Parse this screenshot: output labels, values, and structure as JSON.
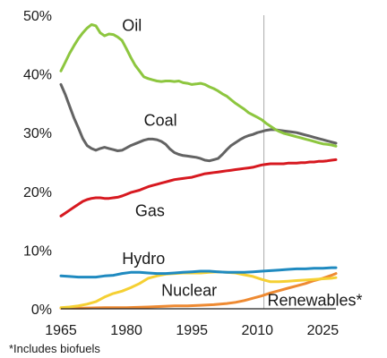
{
  "chart_data": {
    "type": "line",
    "title": "",
    "xlabel": "",
    "ylabel": "",
    "xlim": [
      1965,
      2028
    ],
    "ylim": [
      0,
      50
    ],
    "x_ticks": [
      1965,
      1980,
      1995,
      2010,
      2025
    ],
    "x_tick_labels": [
      "1965",
      "1980",
      "1995",
      "2010",
      "2025"
    ],
    "y_ticks": [
      0,
      10,
      20,
      30,
      40,
      50
    ],
    "y_tick_labels": [
      "0%",
      "10%",
      "20%",
      "30%",
      "40%",
      "50%"
    ],
    "grid": false,
    "legend": "none (series labelled directly on the chart)",
    "forecast_divider_x": 2011.5,
    "footnote": "*Includes biofuels",
    "series": [
      {
        "name": "Oil",
        "color": "#8dc63f",
        "points": [
          [
            1965,
            40.5
          ],
          [
            1966,
            42
          ],
          [
            1967,
            43.5
          ],
          [
            1968,
            44.8
          ],
          [
            1969,
            46
          ],
          [
            1970,
            47
          ],
          [
            1971,
            47.8
          ],
          [
            1972,
            48.4
          ],
          [
            1973,
            48.2
          ],
          [
            1974,
            47
          ],
          [
            1975,
            46.5
          ],
          [
            1976,
            46.8
          ],
          [
            1977,
            46.7
          ],
          [
            1978,
            46.3
          ],
          [
            1979,
            45.7
          ],
          [
            1980,
            44.3
          ],
          [
            1981,
            42.8
          ],
          [
            1982,
            41.5
          ],
          [
            1983,
            40.5
          ],
          [
            1984,
            39.5
          ],
          [
            1985,
            39.2
          ],
          [
            1986,
            39
          ],
          [
            1987,
            38.8
          ],
          [
            1988,
            38.7
          ],
          [
            1989,
            38.8
          ],
          [
            1990,
            38.8
          ],
          [
            1991,
            38.7
          ],
          [
            1992,
            38.8
          ],
          [
            1993,
            38.5
          ],
          [
            1994,
            38.4
          ],
          [
            1995,
            38.2
          ],
          [
            1996,
            38.3
          ],
          [
            1997,
            38.4
          ],
          [
            1998,
            38.2
          ],
          [
            1999,
            37.8
          ],
          [
            2000,
            37.5
          ],
          [
            2001,
            37.1
          ],
          [
            2002,
            36.6
          ],
          [
            2003,
            36.2
          ],
          [
            2004,
            35.6
          ],
          [
            2005,
            35
          ],
          [
            2006,
            34.5
          ],
          [
            2007,
            34
          ],
          [
            2008,
            33.4
          ],
          [
            2009,
            33
          ],
          [
            2010,
            32.6
          ],
          [
            2011,
            32.2
          ],
          [
            2012,
            31.6
          ],
          [
            2013,
            31.1
          ],
          [
            2014,
            30.6
          ],
          [
            2015,
            30.2
          ],
          [
            2016,
            29.9
          ],
          [
            2017,
            29.7
          ],
          [
            2018,
            29.5
          ],
          [
            2019,
            29.3
          ],
          [
            2020,
            29.1
          ],
          [
            2021,
            28.9
          ],
          [
            2022,
            28.7
          ],
          [
            2023,
            28.5
          ],
          [
            2024,
            28.3
          ],
          [
            2025,
            28.1
          ],
          [
            2026,
            28
          ],
          [
            2027,
            27.9
          ],
          [
            2028,
            27.7
          ]
        ]
      },
      {
        "name": "Coal",
        "color": "#636363",
        "points": [
          [
            1965,
            38.2
          ],
          [
            1966,
            36.5
          ],
          [
            1967,
            34.5
          ],
          [
            1968,
            32.5
          ],
          [
            1969,
            30.8
          ],
          [
            1970,
            29
          ],
          [
            1971,
            27.8
          ],
          [
            1972,
            27.3
          ],
          [
            1973,
            27
          ],
          [
            1974,
            27.3
          ],
          [
            1975,
            27.5
          ],
          [
            1976,
            27.3
          ],
          [
            1977,
            27.1
          ],
          [
            1978,
            26.9
          ],
          [
            1979,
            27
          ],
          [
            1980,
            27.4
          ],
          [
            1981,
            27.8
          ],
          [
            1982,
            28.1
          ],
          [
            1983,
            28.4
          ],
          [
            1984,
            28.7
          ],
          [
            1985,
            28.9
          ],
          [
            1986,
            28.9
          ],
          [
            1987,
            28.8
          ],
          [
            1988,
            28.5
          ],
          [
            1989,
            28
          ],
          [
            1990,
            27.2
          ],
          [
            1991,
            26.6
          ],
          [
            1992,
            26.3
          ],
          [
            1993,
            26.1
          ],
          [
            1994,
            26
          ],
          [
            1995,
            25.9
          ],
          [
            1996,
            25.8
          ],
          [
            1997,
            25.6
          ],
          [
            1998,
            25.3
          ],
          [
            1999,
            25.2
          ],
          [
            2000,
            25.4
          ],
          [
            2001,
            25.6
          ],
          [
            2002,
            26.3
          ],
          [
            2003,
            27.1
          ],
          [
            2004,
            27.8
          ],
          [
            2005,
            28.3
          ],
          [
            2006,
            28.8
          ],
          [
            2007,
            29.2
          ],
          [
            2008,
            29.5
          ],
          [
            2009,
            29.7
          ],
          [
            2010,
            30
          ],
          [
            2011,
            30.2
          ],
          [
            2012,
            30.4
          ],
          [
            2013,
            30.5
          ],
          [
            2014,
            30.5
          ],
          [
            2015,
            30.4
          ],
          [
            2016,
            30.3
          ],
          [
            2017,
            30.2
          ],
          [
            2018,
            30.1
          ],
          [
            2019,
            30
          ],
          [
            2020,
            29.8
          ],
          [
            2021,
            29.6
          ],
          [
            2022,
            29.4
          ],
          [
            2023,
            29.2
          ],
          [
            2024,
            29
          ],
          [
            2025,
            28.8
          ],
          [
            2026,
            28.6
          ],
          [
            2027,
            28.4
          ],
          [
            2028,
            28.2
          ]
        ]
      },
      {
        "name": "Gas",
        "color": "#d71920",
        "points": [
          [
            1965,
            15.8
          ],
          [
            1966,
            16.3
          ],
          [
            1967,
            16.8
          ],
          [
            1968,
            17.3
          ],
          [
            1969,
            17.8
          ],
          [
            1970,
            18.3
          ],
          [
            1971,
            18.6
          ],
          [
            1972,
            18.8
          ],
          [
            1973,
            18.9
          ],
          [
            1974,
            18.9
          ],
          [
            1975,
            18.8
          ],
          [
            1976,
            18.8
          ],
          [
            1977,
            18.9
          ],
          [
            1978,
            19
          ],
          [
            1979,
            19.2
          ],
          [
            1980,
            19.5
          ],
          [
            1981,
            19.8
          ],
          [
            1982,
            20
          ],
          [
            1983,
            20.2
          ],
          [
            1984,
            20.5
          ],
          [
            1985,
            20.8
          ],
          [
            1986,
            21
          ],
          [
            1987,
            21.2
          ],
          [
            1988,
            21.4
          ],
          [
            1989,
            21.6
          ],
          [
            1990,
            21.8
          ],
          [
            1991,
            22
          ],
          [
            1992,
            22.1
          ],
          [
            1993,
            22.2
          ],
          [
            1994,
            22.3
          ],
          [
            1995,
            22.4
          ],
          [
            1996,
            22.6
          ],
          [
            1997,
            22.8
          ],
          [
            1998,
            23
          ],
          [
            1999,
            23.1
          ],
          [
            2000,
            23.2
          ],
          [
            2001,
            23.3
          ],
          [
            2002,
            23.4
          ],
          [
            2003,
            23.5
          ],
          [
            2004,
            23.6
          ],
          [
            2005,
            23.7
          ],
          [
            2006,
            23.8
          ],
          [
            2007,
            23.9
          ],
          [
            2008,
            24
          ],
          [
            2009,
            24.1
          ],
          [
            2010,
            24.3
          ],
          [
            2011,
            24.5
          ],
          [
            2012,
            24.6
          ],
          [
            2013,
            24.7
          ],
          [
            2014,
            24.7
          ],
          [
            2015,
            24.7
          ],
          [
            2016,
            24.7
          ],
          [
            2017,
            24.8
          ],
          [
            2018,
            24.8
          ],
          [
            2019,
            24.8
          ],
          [
            2020,
            24.9
          ],
          [
            2021,
            24.9
          ],
          [
            2022,
            25
          ],
          [
            2023,
            25
          ],
          [
            2024,
            25.1
          ],
          [
            2025,
            25.1
          ],
          [
            2026,
            25.2
          ],
          [
            2027,
            25.3
          ],
          [
            2028,
            25.4
          ]
        ]
      },
      {
        "name": "Hydro",
        "color": "#1f8ac0",
        "points": [
          [
            1965,
            5.6
          ],
          [
            1967,
            5.5
          ],
          [
            1969,
            5.4
          ],
          [
            1971,
            5.4
          ],
          [
            1973,
            5.4
          ],
          [
            1975,
            5.6
          ],
          [
            1977,
            5.7
          ],
          [
            1979,
            6
          ],
          [
            1981,
            6.2
          ],
          [
            1983,
            6.2
          ],
          [
            1985,
            6.1
          ],
          [
            1987,
            6
          ],
          [
            1989,
            6
          ],
          [
            1991,
            6.1
          ],
          [
            1993,
            6.2
          ],
          [
            1995,
            6.3
          ],
          [
            1997,
            6.4
          ],
          [
            1999,
            6.4
          ],
          [
            2001,
            6.3
          ],
          [
            2003,
            6.2
          ],
          [
            2005,
            6.2
          ],
          [
            2007,
            6.2
          ],
          [
            2009,
            6.3
          ],
          [
            2011,
            6.4
          ],
          [
            2013,
            6.5
          ],
          [
            2015,
            6.6
          ],
          [
            2017,
            6.7
          ],
          [
            2019,
            6.8
          ],
          [
            2021,
            6.8
          ],
          [
            2023,
            6.9
          ],
          [
            2025,
            6.9
          ],
          [
            2027,
            7
          ],
          [
            2028,
            7
          ]
        ]
      },
      {
        "name": "Nuclear",
        "color": "#f5d033",
        "points": [
          [
            1965,
            0.2
          ],
          [
            1967,
            0.3
          ],
          [
            1969,
            0.5
          ],
          [
            1971,
            0.8
          ],
          [
            1973,
            1.2
          ],
          [
            1975,
            2
          ],
          [
            1977,
            2.6
          ],
          [
            1979,
            3
          ],
          [
            1981,
            3.6
          ],
          [
            1983,
            4.3
          ],
          [
            1985,
            5.2
          ],
          [
            1987,
            5.6
          ],
          [
            1989,
            5.9
          ],
          [
            1991,
            6
          ],
          [
            1993,
            6.1
          ],
          [
            1995,
            6.1
          ],
          [
            1997,
            6.1
          ],
          [
            1999,
            6.2
          ],
          [
            2001,
            6.3
          ],
          [
            2003,
            6.2
          ],
          [
            2005,
            6.1
          ],
          [
            2007,
            5.8
          ],
          [
            2009,
            5.5
          ],
          [
            2011,
            5
          ],
          [
            2013,
            4.6
          ],
          [
            2015,
            4.6
          ],
          [
            2017,
            4.7
          ],
          [
            2019,
            4.8
          ],
          [
            2021,
            4.9
          ],
          [
            2023,
            5
          ],
          [
            2025,
            5.1
          ],
          [
            2027,
            5.2
          ],
          [
            2028,
            5.3
          ]
        ]
      },
      {
        "name": "Renewables*",
        "color": "#ee8a32",
        "points": [
          [
            1965,
            0.1
          ],
          [
            1970,
            0.1
          ],
          [
            1975,
            0.2
          ],
          [
            1980,
            0.2
          ],
          [
            1985,
            0.3
          ],
          [
            1988,
            0.4
          ],
          [
            1991,
            0.5
          ],
          [
            1994,
            0.5
          ],
          [
            1997,
            0.6
          ],
          [
            2000,
            0.7
          ],
          [
            2003,
            0.9
          ],
          [
            2005,
            1.1
          ],
          [
            2007,
            1.4
          ],
          [
            2009,
            1.8
          ],
          [
            2011,
            2.2
          ],
          [
            2013,
            2.7
          ],
          [
            2015,
            3.1
          ],
          [
            2017,
            3.5
          ],
          [
            2019,
            3.9
          ],
          [
            2021,
            4.3
          ],
          [
            2023,
            4.8
          ],
          [
            2025,
            5.2
          ],
          [
            2027,
            5.7
          ],
          [
            2028,
            6
          ]
        ]
      }
    ]
  }
}
